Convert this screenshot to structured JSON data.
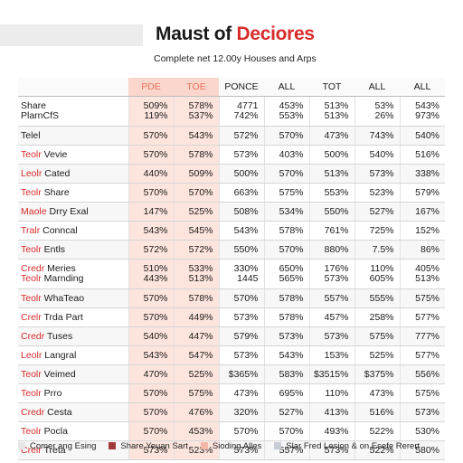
{
  "header": {
    "title_part1": "Maust of ",
    "title_part2": "Deciores",
    "subtitle": "Complete net 12.00y Houses and Arps"
  },
  "table": {
    "columns": [
      "",
      "PDE",
      "TOE",
      "PONCE",
      "ALL",
      "TOT",
      "ALL",
      "ALL"
    ],
    "rows": [
      {
        "label": [
          "Share",
          "PlarnCfS"
        ],
        "red": false,
        "values": [
          [
            "509%",
            "119%"
          ],
          [
            "578%",
            "537%"
          ],
          [
            "4771",
            "742%"
          ],
          [
            "453%",
            "553%"
          ],
          [
            "513%",
            "513%"
          ],
          [
            "53%",
            "26%"
          ],
          [
            "543%",
            "973%"
          ]
        ]
      },
      {
        "label": [
          "Telel"
        ],
        "red": false,
        "values": [
          [
            "570%"
          ],
          [
            "543%"
          ],
          [
            "572%"
          ],
          [
            "570%"
          ],
          [
            "473%"
          ],
          [
            "743%"
          ],
          [
            "540%"
          ]
        ]
      },
      {
        "label": [
          "Teolr",
          " Vevie"
        ],
        "red": true,
        "values": [
          [
            "570%"
          ],
          [
            "578%"
          ],
          [
            "573%"
          ],
          [
            "403%"
          ],
          [
            "500%"
          ],
          [
            "540%"
          ],
          [
            "516%"
          ]
        ]
      },
      {
        "label": [
          "Leolr",
          " Cated"
        ],
        "red": true,
        "values": [
          [
            "440%"
          ],
          [
            "509%"
          ],
          [
            "500%"
          ],
          [
            "570%"
          ],
          [
            "513%"
          ],
          [
            "573%"
          ],
          [
            "338%"
          ]
        ]
      },
      {
        "label": [
          "Teolr",
          " Share"
        ],
        "red": true,
        "values": [
          [
            "570%"
          ],
          [
            "570%"
          ],
          [
            "663%"
          ],
          [
            "575%"
          ],
          [
            "553%"
          ],
          [
            "523%"
          ],
          [
            "579%"
          ]
        ]
      },
      {
        "label": [
          "Maole",
          " Drry Exal"
        ],
        "red": true,
        "values": [
          [
            "147%"
          ],
          [
            "525%"
          ],
          [
            "508%"
          ],
          [
            "534%"
          ],
          [
            "550%"
          ],
          [
            "527%"
          ],
          [
            "167%"
          ]
        ]
      },
      {
        "label": [
          "Tralr",
          " Conncal"
        ],
        "red": true,
        "values": [
          [
            "543%"
          ],
          [
            "545%"
          ],
          [
            "543%"
          ],
          [
            "578%"
          ],
          [
            "761%"
          ],
          [
            "725%"
          ],
          [
            "152%"
          ]
        ]
      },
      {
        "label": [
          "Teolr",
          " Entls"
        ],
        "red": true,
        "values": [
          [
            "572%"
          ],
          [
            "572%"
          ],
          [
            "550%"
          ],
          [
            "570%"
          ],
          [
            "880%"
          ],
          [
            "7.5%"
          ],
          [
            "86%"
          ]
        ]
      },
      {
        "label": [
          "Credr",
          " Meries",
          "Teolr",
          " Marnding"
        ],
        "red": true,
        "values": [
          [
            "510%",
            "443%"
          ],
          [
            "533%",
            "513%"
          ],
          [
            "330%",
            "1445"
          ],
          [
            "650%",
            "565%"
          ],
          [
            "176%",
            "573%"
          ],
          [
            "110%",
            "605%"
          ],
          [
            "405%",
            "513%"
          ]
        ]
      },
      {
        "label": [
          "Teolr",
          " WhaTeao"
        ],
        "red": true,
        "values": [
          [
            "570%"
          ],
          [
            "578%"
          ],
          [
            "570%"
          ],
          [
            "578%"
          ],
          [
            "557%"
          ],
          [
            "555%"
          ],
          [
            "575%"
          ]
        ]
      },
      {
        "label": [
          "Crelr",
          " Trda Part"
        ],
        "red": true,
        "values": [
          [
            "570%"
          ],
          [
            "449%"
          ],
          [
            "573%"
          ],
          [
            "578%"
          ],
          [
            "457%"
          ],
          [
            "258%"
          ],
          [
            "577%"
          ]
        ]
      },
      {
        "label": [
          "Credr",
          " Tuses"
        ],
        "red": true,
        "values": [
          [
            "540%"
          ],
          [
            "447%"
          ],
          [
            "579%"
          ],
          [
            "573%"
          ],
          [
            "573%"
          ],
          [
            "575%"
          ],
          [
            "777%"
          ]
        ]
      },
      {
        "label": [
          "Leolr",
          " Langral"
        ],
        "red": true,
        "values": [
          [
            "543%"
          ],
          [
            "547%"
          ],
          [
            "573%"
          ],
          [
            "543%"
          ],
          [
            "153%"
          ],
          [
            "525%"
          ],
          [
            "577%"
          ]
        ]
      },
      {
        "label": [
          "Teolr",
          " Veimed"
        ],
        "red": true,
        "values": [
          [
            "470%"
          ],
          [
            "525%"
          ],
          [
            "$365%"
          ],
          [
            "583%"
          ],
          [
            "$3515%"
          ],
          [
            "$375%"
          ],
          [
            "556%"
          ]
        ]
      },
      {
        "label": [
          "Teolr",
          " Prro"
        ],
        "red": true,
        "values": [
          [
            "570%"
          ],
          [
            "575%"
          ],
          [
            "473%"
          ],
          [
            "695%"
          ],
          [
            "110%"
          ],
          [
            "473%"
          ],
          [
            "575%"
          ]
        ]
      },
      {
        "label": [
          "Credr",
          " Cesta"
        ],
        "red": true,
        "values": [
          [
            "570%"
          ],
          [
            "476%"
          ],
          [
            "320%"
          ],
          [
            "527%"
          ],
          [
            "413%"
          ],
          [
            "516%"
          ],
          [
            "573%"
          ]
        ]
      },
      {
        "label": [
          "Teolr",
          " Pocla"
        ],
        "red": true,
        "values": [
          [
            "570%"
          ],
          [
            "453%"
          ],
          [
            "570%"
          ],
          [
            "570%"
          ],
          [
            "493%"
          ],
          [
            "522%"
          ],
          [
            "530%"
          ]
        ]
      },
      {
        "label": [
          "Crelr",
          " Treta"
        ],
        "red": true,
        "values": [
          [
            "573%"
          ],
          [
            "523%"
          ],
          [
            "573%"
          ],
          [
            "557%"
          ],
          [
            "573%"
          ],
          [
            "522%"
          ],
          [
            "580%"
          ]
        ]
      }
    ]
  },
  "footer": {
    "legend": [
      {
        "label": "Comer ang Esing",
        "color": "#e6e6e6"
      },
      {
        "label": "Share Yeuan Sart",
        "color": "#a33a3a"
      },
      {
        "label": "Sioding Alles",
        "color": "#f4b6a6"
      },
      {
        "label": "Slar Fred Lesion & on Esefe Rerert",
        "color": "#c7ccd4"
      }
    ]
  }
}
